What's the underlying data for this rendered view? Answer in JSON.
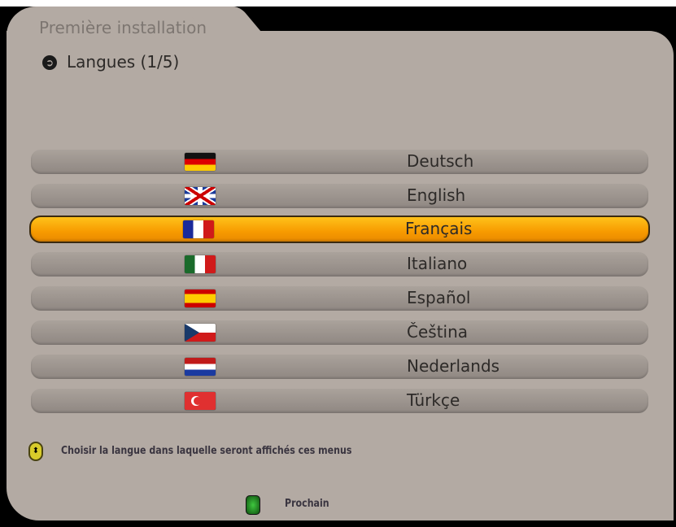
{
  "header": {
    "title": "Première installation",
    "step": "Langues (1/5)",
    "step_icon": "arrow-right-circle-icon"
  },
  "languages": [
    {
      "label": "Deutsch",
      "flag": "de"
    },
    {
      "label": "English",
      "flag": "gb"
    },
    {
      "label": "Français",
      "flag": "fr",
      "selected": true
    },
    {
      "label": "Italiano",
      "flag": "it"
    },
    {
      "label": "Español",
      "flag": "es"
    },
    {
      "label": "Čeština",
      "flag": "cz"
    },
    {
      "label": "Nederlands",
      "flag": "nl"
    },
    {
      "label": "Türkçe",
      "flag": "tr"
    }
  ],
  "footer": {
    "hint": "Choisir la langue dans laquelle seront affichés ces menus",
    "next_label": "Prochain",
    "next_color": "#2fb52f",
    "highlight_color": "#f79a00"
  }
}
